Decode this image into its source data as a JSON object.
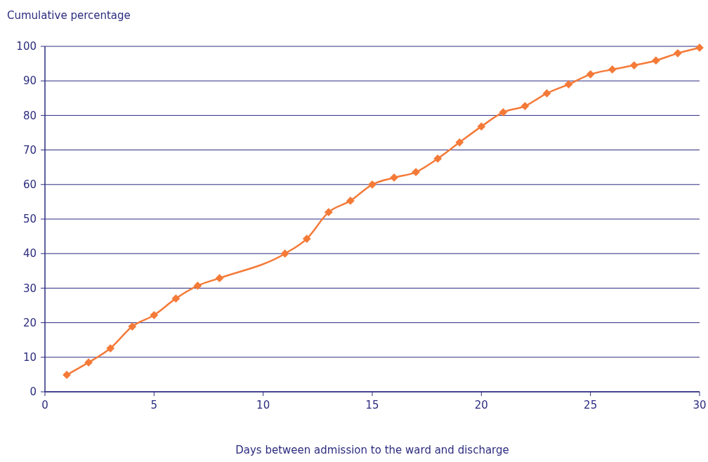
{
  "chart_data": {
    "type": "line",
    "xlabel": "Days between admission to the ward and discharge",
    "ylabel": "Cumulative percentage",
    "x": [
      1,
      2,
      3,
      4,
      5,
      6,
      7,
      8,
      11,
      12,
      13,
      14,
      15,
      16,
      17,
      18,
      19,
      20,
      21,
      22,
      23,
      24,
      25,
      26,
      27,
      28,
      29,
      30
    ],
    "series": [
      {
        "color": "#f47a38",
        "values": [
          4.9,
          8.5,
          12.6,
          18.9,
          22.2,
          27.0,
          30.7,
          32.9,
          40.0,
          44.3,
          52.0,
          55.3,
          60.0,
          62.0,
          63.6,
          67.5,
          72.2,
          76.8,
          80.9,
          82.7,
          86.4,
          89.0,
          91.9,
          93.3,
          94.5,
          95.9,
          98.0,
          99.6
        ]
      }
    ],
    "xlim": [
      0,
      30
    ],
    "xticks": [
      0,
      5,
      10,
      15,
      20,
      25,
      30
    ],
    "ylim": [
      0,
      100
    ],
    "yticks": [
      0,
      10,
      20,
      30,
      40,
      50,
      60,
      70,
      80,
      90,
      100
    ],
    "grid": "y",
    "marker": "diamond",
    "line_style": "solid"
  }
}
